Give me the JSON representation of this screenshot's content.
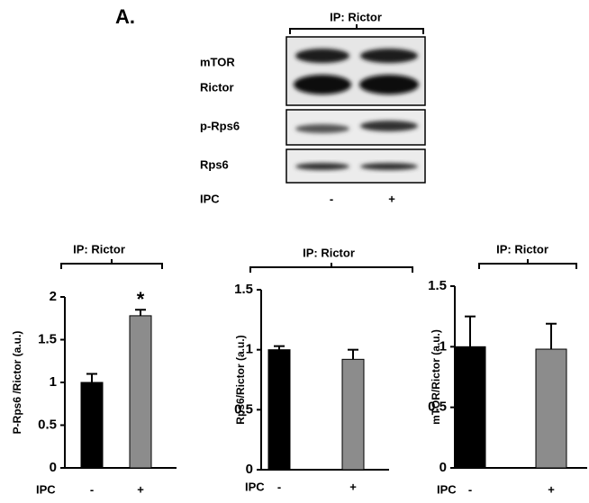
{
  "panel_label": "A.",
  "blot": {
    "title": "IP: Rictor",
    "rows": [
      "mTOR",
      "Rictor",
      "p-Rps6",
      "Rps6"
    ],
    "condition_label": "IPC",
    "conditions": [
      "-",
      "+"
    ]
  },
  "chart_data": [
    {
      "type": "bar",
      "title": "IP: Rictor",
      "ylabel": "P-Rps6 /Rictor (a.u.)",
      "xlabel": "IPC",
      "categories": [
        "-",
        "+"
      ],
      "values": [
        1.0,
        1.78
      ],
      "errors": [
        0.1,
        0.07
      ],
      "colors": [
        "#000000",
        "#8c8c8c"
      ],
      "annotation": "*",
      "ylim": [
        0,
        2
      ],
      "yticks": [
        0,
        0.5,
        1,
        1.5,
        2
      ]
    },
    {
      "type": "bar",
      "title": "IP: Rictor",
      "ylabel": "Rps6/Rictor (a.u.)",
      "xlabel": "IPC",
      "categories": [
        "-",
        "+"
      ],
      "values": [
        1.0,
        0.92
      ],
      "errors": [
        0.03,
        0.08
      ],
      "colors": [
        "#000000",
        "#8c8c8c"
      ],
      "ylim": [
        0,
        1.5
      ],
      "yticks": [
        0,
        0.5,
        1,
        1.5
      ]
    },
    {
      "type": "bar",
      "title": "IP: Rictor",
      "ylabel": "mTOR/Rictor (a.u.)",
      "xlabel": "IPC",
      "categories": [
        "-",
        "+"
      ],
      "values": [
        1.0,
        0.98
      ],
      "errors": [
        0.25,
        0.21
      ],
      "colors": [
        "#000000",
        "#8c8c8c"
      ],
      "ylim": [
        0,
        1.5
      ],
      "yticks": [
        0,
        0.5,
        1,
        1.5
      ]
    }
  ]
}
